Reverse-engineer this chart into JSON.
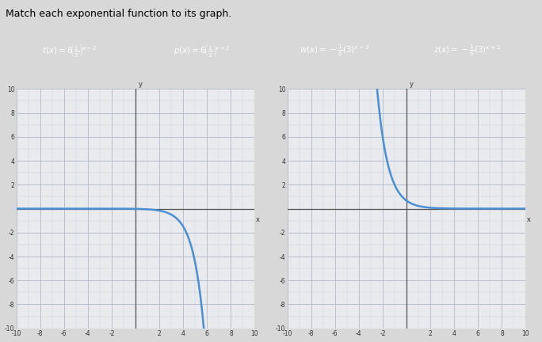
{
  "title": "Match each exponential function to its graph.",
  "box_labels": [
    "t(x) = 6(1/3)^{x-2}",
    "p(x) = 6(1/3)^{x+2}",
    "w(x) = -1/6(3)^{x-2}",
    "z(x) = -1/6(3)^{x+2}"
  ],
  "box_color": "#3a6fbe",
  "box_text_color": "#ffffff",
  "xlim": [
    -10,
    10
  ],
  "ylim": [
    -10,
    10
  ],
  "grid_color": "#b0b8c8",
  "minor_grid_color": "#c8d0d8",
  "axis_color": "#555555",
  "curve_color": "#4a8fd4",
  "bg_color": "#d8d8d8",
  "plot_bg": "#e8eaee",
  "header_bg": "#e0e0e0",
  "left_func": "w",
  "right_func": "p",
  "tick_step": 2,
  "tick_fontsize": 5.5,
  "title_fontsize": 9
}
